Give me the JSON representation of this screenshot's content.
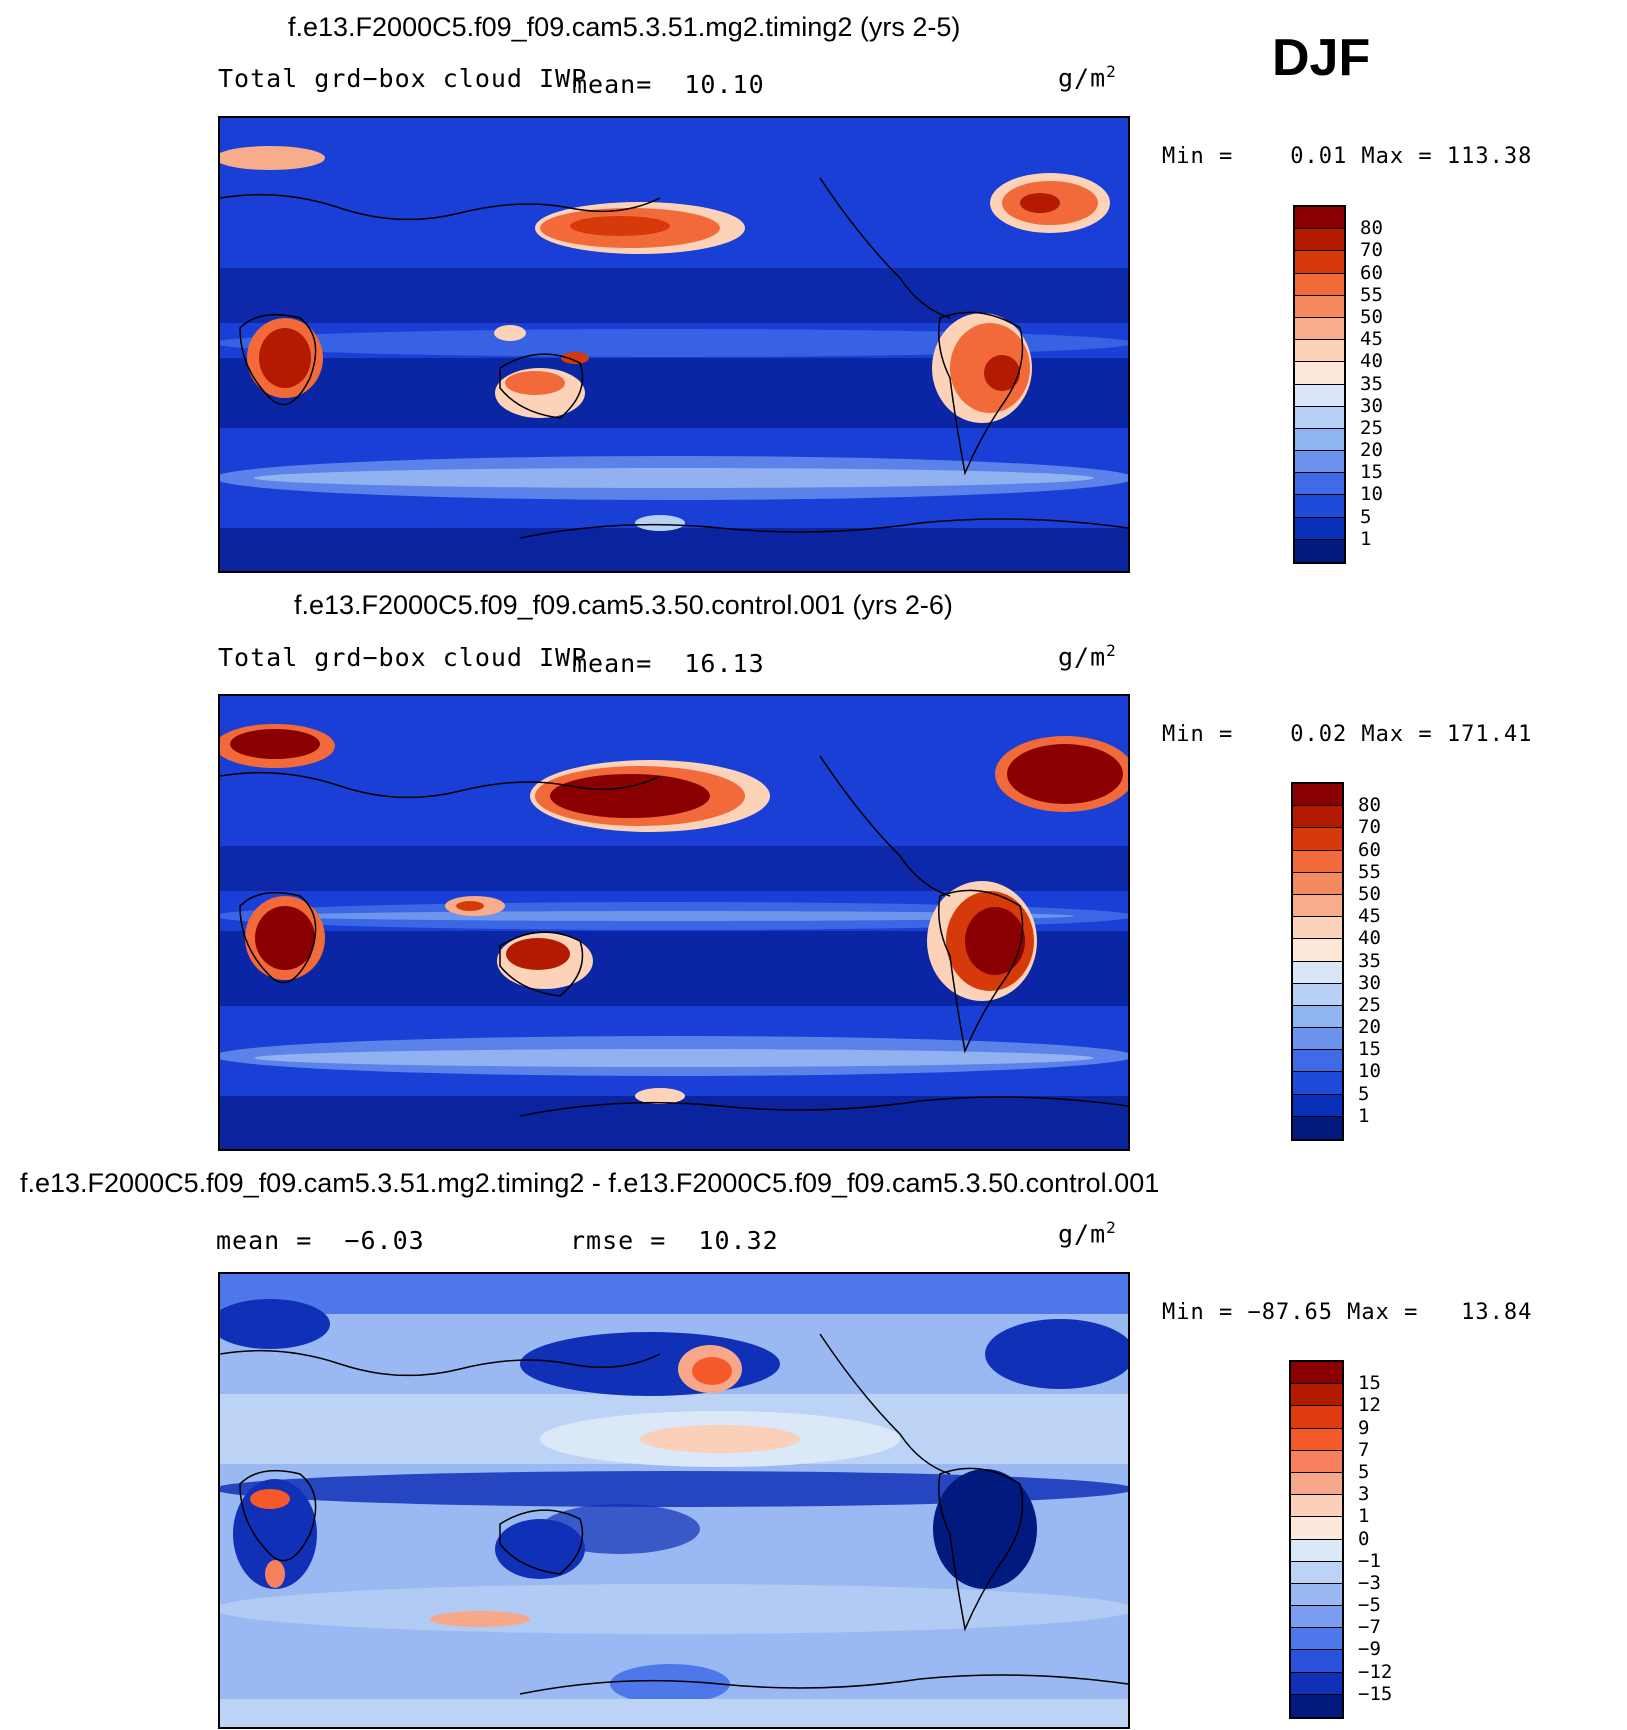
{
  "season": "DJF",
  "panels": [
    {
      "title": "f.e13.F2000C5.f09_f09.cam5.3.51.mg2.timing2 (yrs 2-5)",
      "left_text": "Total grd−box cloud IWP",
      "mean_label": "mean=  10.10",
      "units_base": "g/m",
      "units_exp": "2",
      "minmax": "Min =    0.01 Max = 113.38",
      "legend_labels": [
        "80",
        "70",
        "60",
        "55",
        "50",
        "45",
        "40",
        "35",
        "30",
        "25",
        "20",
        "15",
        "10",
        "5",
        "1"
      ]
    },
    {
      "title": "f.e13.F2000C5.f09_f09.cam5.3.50.control.001 (yrs 2-6)",
      "left_text": "Total grd−box cloud IWP",
      "mean_label": "mean=  16.13",
      "units_base": "g/m",
      "units_exp": "2",
      "minmax": "Min =    0.02 Max = 171.41",
      "legend_labels": [
        "80",
        "70",
        "60",
        "55",
        "50",
        "45",
        "40",
        "35",
        "30",
        "25",
        "20",
        "15",
        "10",
        "5",
        "1"
      ]
    },
    {
      "title": "f.e13.F2000C5.f09_f09.cam5.3.51.mg2.timing2 - f.e13.F2000C5.f09_f09.cam5.3.50.control.001",
      "mean_label": "mean =  −6.03",
      "rmse_label": "rmse =  10.32",
      "units_base": "g/m",
      "units_exp": "2",
      "minmax": "Min = −87.65 Max =   13.84",
      "legend_labels": [
        "15",
        "12",
        "9",
        "7",
        "5",
        "3",
        "1",
        "0",
        "−1",
        "−3",
        "−5",
        "−7",
        "−9",
        "−12",
        "−15"
      ]
    }
  ],
  "colors": {
    "abs_scale": [
      "#8a0000",
      "#b31a00",
      "#d63a0a",
      "#f26a3a",
      "#f58a5e",
      "#f7ad8c",
      "#fcd2b8",
      "#fde8d8",
      "#d8e6f7",
      "#b8d0f5",
      "#8eb4f2",
      "#6a94ed",
      "#3f6ce6",
      "#1f4bdb",
      "#0a2fb8",
      "#001a80"
    ],
    "diff_scale": [
      "#8a0000",
      "#b31a00",
      "#e03a10",
      "#f55a2a",
      "#f78060",
      "#f8a88a",
      "#fbd0b8",
      "#fde8dc",
      "#dbe8f8",
      "#bcd3f6",
      "#9ab9f2",
      "#7a9df0",
      "#4e78ea",
      "#2852dc",
      "#1030b8",
      "#001a80"
    ],
    "ocean_blue": "#1a3fd6",
    "ocean_dark": "#0a239e"
  }
}
